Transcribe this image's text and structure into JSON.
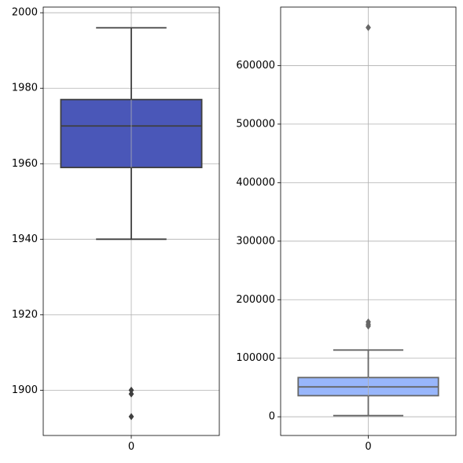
{
  "chart_data": [
    {
      "type": "box",
      "categories": [
        "0"
      ],
      "yticks": [
        1900,
        1920,
        1940,
        1960,
        1980,
        2000
      ],
      "ylim": [
        1888,
        2001.5
      ],
      "box": {
        "whisker_low": 1940,
        "q1": 1959,
        "median": 1970,
        "q3": 1977,
        "whisker_high": 1996
      },
      "outliers": [
        1900,
        1899,
        1893
      ],
      "grid": true,
      "box_color": "#4a57b8"
    },
    {
      "type": "box",
      "categories": [
        "0"
      ],
      "yticks": [
        0,
        100000,
        200000,
        300000,
        400000,
        500000,
        600000
      ],
      "ylim": [
        -32000,
        700000
      ],
      "box": {
        "whisker_low": 2000,
        "q1": 36000,
        "median": 51000,
        "q3": 67000,
        "whisker_high": 114000
      },
      "outliers": [
        155000,
        158000,
        162000,
        665000
      ],
      "grid": true,
      "box_color": "#98b6fb"
    }
  ]
}
